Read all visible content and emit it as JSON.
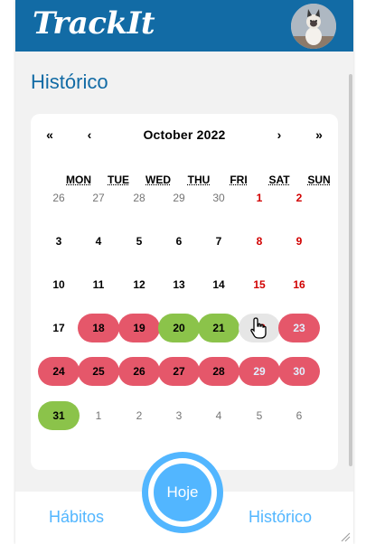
{
  "header": {
    "logo": "TrackIt",
    "avatar_icon": "cat-avatar"
  },
  "page": {
    "title": "Histórico"
  },
  "calendar": {
    "nav": {
      "prev_year": "«",
      "prev_month": "‹",
      "label": "October 2022",
      "next_month": "›",
      "next_year": "»"
    },
    "weekdays": [
      "MON",
      "TUE",
      "WED",
      "THU",
      "FRI",
      "SAT",
      "SUN"
    ],
    "weeks": [
      [
        {
          "d": "26",
          "o": true
        },
        {
          "d": "27",
          "o": true
        },
        {
          "d": "28",
          "o": true
        },
        {
          "d": "29",
          "o": true
        },
        {
          "d": "30",
          "o": true
        },
        {
          "d": "1",
          "w": true
        },
        {
          "d": "2",
          "w": true
        }
      ],
      [
        {
          "d": "3"
        },
        {
          "d": "4"
        },
        {
          "d": "5"
        },
        {
          "d": "6"
        },
        {
          "d": "7"
        },
        {
          "d": "8",
          "w": true
        },
        {
          "d": "9",
          "w": true
        }
      ],
      [
        {
          "d": "10"
        },
        {
          "d": "11"
        },
        {
          "d": "12"
        },
        {
          "d": "13"
        },
        {
          "d": "14"
        },
        {
          "d": "15",
          "w": true
        },
        {
          "d": "16",
          "w": true
        }
      ],
      [
        {
          "d": "17"
        },
        {
          "d": "18",
          "s": "red"
        },
        {
          "d": "19",
          "s": "red"
        },
        {
          "d": "20",
          "s": "green"
        },
        {
          "d": "21",
          "s": "green"
        },
        {
          "d": "22",
          "w": true,
          "s": "gray",
          "hover": true
        },
        {
          "d": "23",
          "w": true,
          "s": "red"
        }
      ],
      [
        {
          "d": "24",
          "s": "red"
        },
        {
          "d": "25",
          "s": "red"
        },
        {
          "d": "26",
          "s": "red"
        },
        {
          "d": "27",
          "s": "red"
        },
        {
          "d": "28",
          "s": "red"
        },
        {
          "d": "29",
          "w": true,
          "s": "red"
        },
        {
          "d": "30",
          "w": true,
          "s": "red"
        }
      ],
      [
        {
          "d": "31",
          "s": "green"
        },
        {
          "d": "1",
          "o": true
        },
        {
          "d": "2",
          "o": true
        },
        {
          "d": "3",
          "o": true
        },
        {
          "d": "4",
          "o": true
        },
        {
          "d": "5",
          "o": true
        },
        {
          "d": "6",
          "o": true
        }
      ]
    ]
  },
  "bottom_nav": {
    "habitos": "Hábitos",
    "hoje": "Hoje",
    "historico": "Histórico"
  },
  "colors": {
    "brand_blue": "#126ba5",
    "accent_blue": "#52b6ff",
    "incomplete_red": "#e5576a",
    "complete_green": "#8bc34a",
    "weekend_red": "#d10000"
  }
}
